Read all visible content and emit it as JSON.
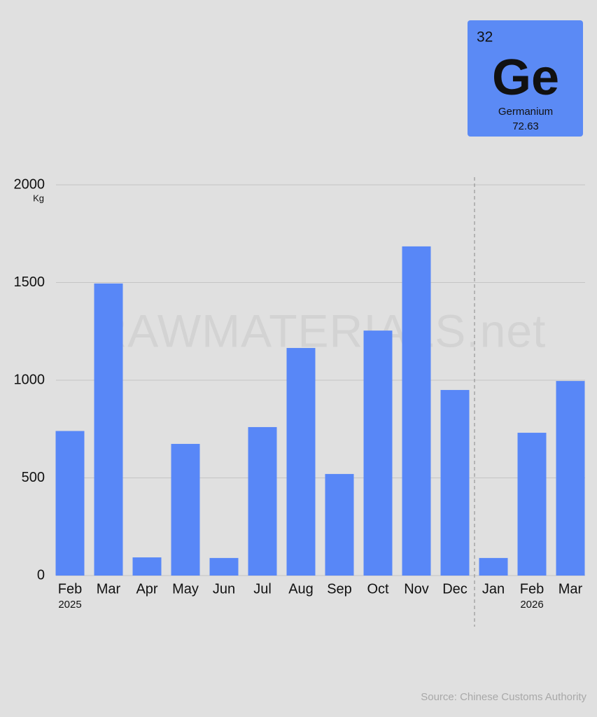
{
  "chart_data": {
    "type": "bar",
    "y_unit": "Kg",
    "categories": [
      "Feb",
      "Mar",
      "Apr",
      "May",
      "Jun",
      "Jul",
      "Aug",
      "Sep",
      "Oct",
      "Nov",
      "Dec",
      "Jan",
      "Feb",
      "Mar"
    ],
    "sublabels": [
      "2025",
      null,
      null,
      null,
      null,
      null,
      null,
      null,
      null,
      null,
      null,
      null,
      "2026",
      null
    ],
    "values": [
      740,
      1495,
      93,
      674,
      90,
      760,
      1165,
      520,
      1254,
      1685,
      950,
      90,
      731,
      996
    ],
    "color": "#5887f7",
    "ylim": [
      0,
      2000
    ],
    "yticks": [
      0,
      500,
      1000,
      1500,
      2000
    ],
    "grid": true,
    "watermark": "RAWMATERIALS.net",
    "source": "Source: Chinese Customs Authority"
  },
  "element": {
    "number": 32,
    "symbol": "Ge",
    "name": "Germanium",
    "mass": 72.63
  }
}
